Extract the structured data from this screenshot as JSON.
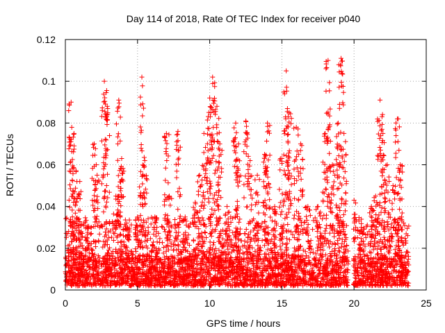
{
  "chart_data": {
    "type": "scatter",
    "title": "Day 114 of 2018, Rate Of TEC Index for receiver p040",
    "xlabel": "GPS time / hours",
    "ylabel": "ROTI / TECUs",
    "xlim": [
      0,
      25
    ],
    "ylim": [
      0,
      0.12
    ],
    "xticks": [
      0,
      5,
      10,
      15,
      20,
      25
    ],
    "xtick_labels": [
      "0",
      "5",
      "10",
      "15",
      "20",
      "25"
    ],
    "yticks": [
      0,
      0.02,
      0.04,
      0.06,
      0.08,
      0.1,
      0.12
    ],
    "ytick_labels": [
      "0",
      "0.02",
      "0.04",
      "0.06",
      "0.08",
      "0.1",
      "0.12"
    ],
    "grid": true,
    "marker": "+",
    "marker_color": "#ff0000",
    "gap_hours": [
      19.6,
      19.95
    ],
    "baseline_band": {
      "x_range": [
        0,
        23.8
      ],
      "y_range": [
        0.002,
        0.015
      ]
    },
    "mid_band": {
      "y_range": [
        0.015,
        0.035
      ]
    },
    "peaks": [
      {
        "x": 0.4,
        "y": 0.09
      },
      {
        "x": 0.6,
        "y": 0.075
      },
      {
        "x": 0.8,
        "y": 0.052
      },
      {
        "x": 1.0,
        "y": 0.052
      },
      {
        "x": 1.5,
        "y": 0.03
      },
      {
        "x": 2.0,
        "y": 0.07
      },
      {
        "x": 2.2,
        "y": 0.055
      },
      {
        "x": 2.7,
        "y": 0.1
      },
      {
        "x": 2.9,
        "y": 0.088
      },
      {
        "x": 3.5,
        "y": 0.045
      },
      {
        "x": 3.7,
        "y": 0.091
      },
      {
        "x": 3.9,
        "y": 0.063
      },
      {
        "x": 4.3,
        "y": 0.03
      },
      {
        "x": 5.0,
        "y": 0.035
      },
      {
        "x": 5.3,
        "y": 0.102
      },
      {
        "x": 5.5,
        "y": 0.062
      },
      {
        "x": 6.2,
        "y": 0.035
      },
      {
        "x": 7.0,
        "y": 0.075
      },
      {
        "x": 7.2,
        "y": 0.045
      },
      {
        "x": 7.8,
        "y": 0.076
      },
      {
        "x": 8.3,
        "y": 0.035
      },
      {
        "x": 9.0,
        "y": 0.042
      },
      {
        "x": 9.3,
        "y": 0.055
      },
      {
        "x": 9.6,
        "y": 0.075
      },
      {
        "x": 10.0,
        "y": 0.092
      },
      {
        "x": 10.2,
        "y": 0.102
      },
      {
        "x": 10.5,
        "y": 0.088
      },
      {
        "x": 10.7,
        "y": 0.07
      },
      {
        "x": 11.2,
        "y": 0.04
      },
      {
        "x": 11.8,
        "y": 0.08
      },
      {
        "x": 12.0,
        "y": 0.07
      },
      {
        "x": 12.5,
        "y": 0.081
      },
      {
        "x": 12.8,
        "y": 0.062
      },
      {
        "x": 13.3,
        "y": 0.055
      },
      {
        "x": 13.8,
        "y": 0.065
      },
      {
        "x": 14.0,
        "y": 0.08
      },
      {
        "x": 14.5,
        "y": 0.04
      },
      {
        "x": 15.0,
        "y": 0.063
      },
      {
        "x": 15.3,
        "y": 0.105
      },
      {
        "x": 15.5,
        "y": 0.085
      },
      {
        "x": 16.0,
        "y": 0.078
      },
      {
        "x": 16.3,
        "y": 0.07
      },
      {
        "x": 16.8,
        "y": 0.04
      },
      {
        "x": 17.5,
        "y": 0.04
      },
      {
        "x": 18.0,
        "y": 0.075
      },
      {
        "x": 18.2,
        "y": 0.11
      },
      {
        "x": 18.5,
        "y": 0.06
      },
      {
        "x": 18.9,
        "y": 0.08
      },
      {
        "x": 19.1,
        "y": 0.111
      },
      {
        "x": 19.3,
        "y": 0.075
      },
      {
        "x": 20.0,
        "y": 0.043
      },
      {
        "x": 20.5,
        "y": 0.03
      },
      {
        "x": 21.2,
        "y": 0.04
      },
      {
        "x": 21.5,
        "y": 0.045
      },
      {
        "x": 21.8,
        "y": 0.091
      },
      {
        "x": 22.0,
        "y": 0.075
      },
      {
        "x": 22.3,
        "y": 0.06
      },
      {
        "x": 22.7,
        "y": 0.05
      },
      {
        "x": 23.0,
        "y": 0.082
      },
      {
        "x": 23.2,
        "y": 0.06
      }
    ]
  }
}
